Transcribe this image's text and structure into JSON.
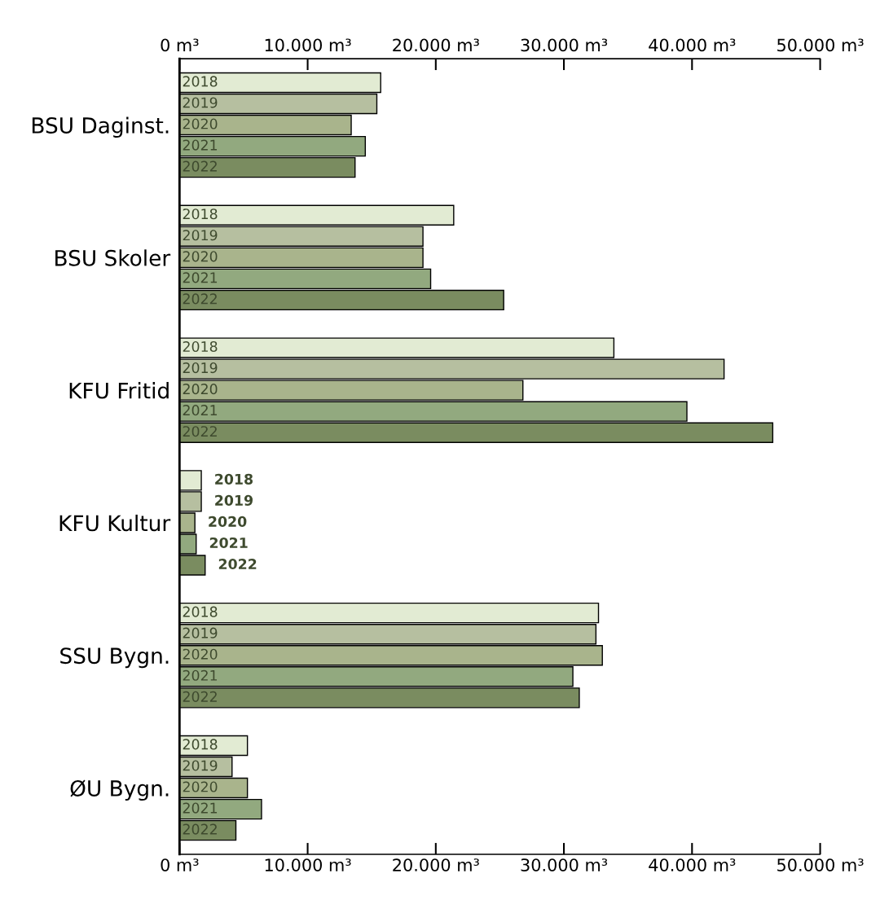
{
  "chart_data": {
    "type": "bar",
    "orientation": "horizontal",
    "categories": [
      "BSU Daginst.",
      "BSU Skoler",
      "KFU Fritid",
      "KFU Kultur",
      "SSU Bygn.",
      "ØU Bygn."
    ],
    "series": [
      {
        "name": "2018",
        "color": "#e2ebd3",
        "values": [
          15700,
          21400,
          33900,
          1700,
          32700,
          5300
        ]
      },
      {
        "name": "2019",
        "color": "#b6bfa0",
        "values": [
          15400,
          19000,
          42500,
          1700,
          32500,
          4100
        ]
      },
      {
        "name": "2020",
        "color": "#a9b48c",
        "values": [
          13400,
          19000,
          26800,
          1200,
          33000,
          5300
        ]
      },
      {
        "name": "2021",
        "color": "#92a97f",
        "values": [
          14500,
          19600,
          39600,
          1300,
          30700,
          6400
        ]
      },
      {
        "name": "2022",
        "color": "#7a8c60",
        "values": [
          13700,
          25300,
          46300,
          2000,
          31200,
          4400
        ]
      }
    ],
    "xlim": [
      0,
      50000
    ],
    "xticks": [
      {
        "value": 0,
        "label": "0 m³"
      },
      {
        "value": 10000,
        "label": "10.000 m³"
      },
      {
        "value": 20000,
        "label": "20.000 m³"
      },
      {
        "value": 30000,
        "label": "30.000 m³"
      },
      {
        "value": 40000,
        "label": "40.000 m³"
      },
      {
        "value": 50000,
        "label": "50.000 m³"
      }
    ],
    "x2lim": [
      0,
      50000
    ],
    "x2ticks": [
      {
        "value": 0,
        "label": "0 m³"
      },
      {
        "value": 10000,
        "label": "10.000 m³"
      },
      {
        "value": 20000,
        "label": "20.000 m³"
      },
      {
        "value": 30000,
        "label": "30.000 m³"
      },
      {
        "value": 40000,
        "label": "40.000 m³"
      },
      {
        "value": 50000,
        "label": "50.000 m³"
      }
    ],
    "grid": false
  }
}
